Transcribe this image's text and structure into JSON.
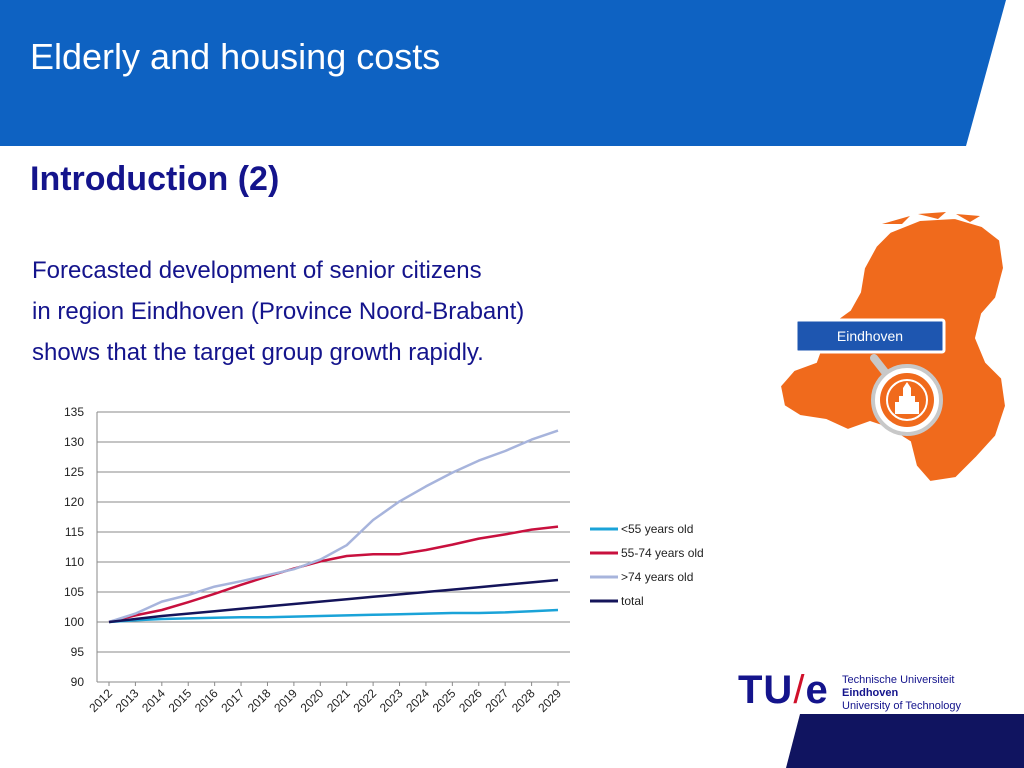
{
  "slide": {
    "title": "Elderly and housing costs",
    "heading": "Introduction (2)",
    "body_lines": [
      "Forecasted development of senior citizens",
      "in region Eindhoven (Province Noord-Brabant)",
      "shows that the target group growth rapidly."
    ]
  },
  "map": {
    "label": "Eindhoven",
    "fill_color": "#f06a1c",
    "icon": "city-magnifier-icon"
  },
  "logo": {
    "mark_left": "TU",
    "mark_slash": "/",
    "mark_right": "e",
    "lines": [
      "Technische Universiteit",
      "Eindhoven",
      "University of Technology"
    ]
  },
  "colors": {
    "header_blue": "#0e62c2",
    "text_navy": "#14148c",
    "footer_navy": "#101460",
    "accent_red": "#d0102a"
  },
  "chart_data": {
    "type": "line",
    "x": [
      "2012",
      "2013",
      "2014",
      "2015",
      "2016",
      "2017",
      "2018",
      "2019",
      "2020",
      "2021",
      "2022",
      "2023",
      "2024",
      "2025",
      "2026",
      "2027",
      "2028",
      "2029"
    ],
    "ylim": [
      90,
      135
    ],
    "yticks": [
      90,
      95,
      100,
      105,
      110,
      115,
      120,
      125,
      130,
      135
    ],
    "grid": true,
    "legend_position": "right",
    "series": [
      {
        "name": "<55 years old",
        "color": "#1aa3d8",
        "values": [
          100,
          100.3,
          100.5,
          100.6,
          100.7,
          100.8,
          100.8,
          100.9,
          101.0,
          101.1,
          101.2,
          101.3,
          101.4,
          101.5,
          101.5,
          101.6,
          101.8,
          102.0
        ]
      },
      {
        "name": "55-74 years old",
        "color": "#c8103e",
        "values": [
          100,
          101.1,
          102.0,
          103.3,
          104.7,
          106.2,
          107.6,
          108.9,
          110.1,
          111.0,
          111.3,
          111.3,
          112.0,
          112.9,
          113.9,
          114.6,
          115.4,
          115.9
        ]
      },
      {
        "name": ">74 years old",
        "color": "#a7b4dc",
        "values": [
          100,
          101.4,
          103.4,
          104.5,
          105.9,
          106.8,
          107.8,
          108.8,
          110.4,
          112.8,
          117.0,
          120.1,
          122.6,
          124.9,
          126.9,
          128.5,
          130.4,
          131.9
        ]
      },
      {
        "name": "total",
        "color": "#14145a",
        "values": [
          100,
          100.5,
          101.0,
          101.4,
          101.8,
          102.2,
          102.6,
          103.0,
          103.4,
          103.8,
          104.2,
          104.6,
          105.0,
          105.4,
          105.8,
          106.2,
          106.6,
          107.0
        ]
      }
    ]
  }
}
